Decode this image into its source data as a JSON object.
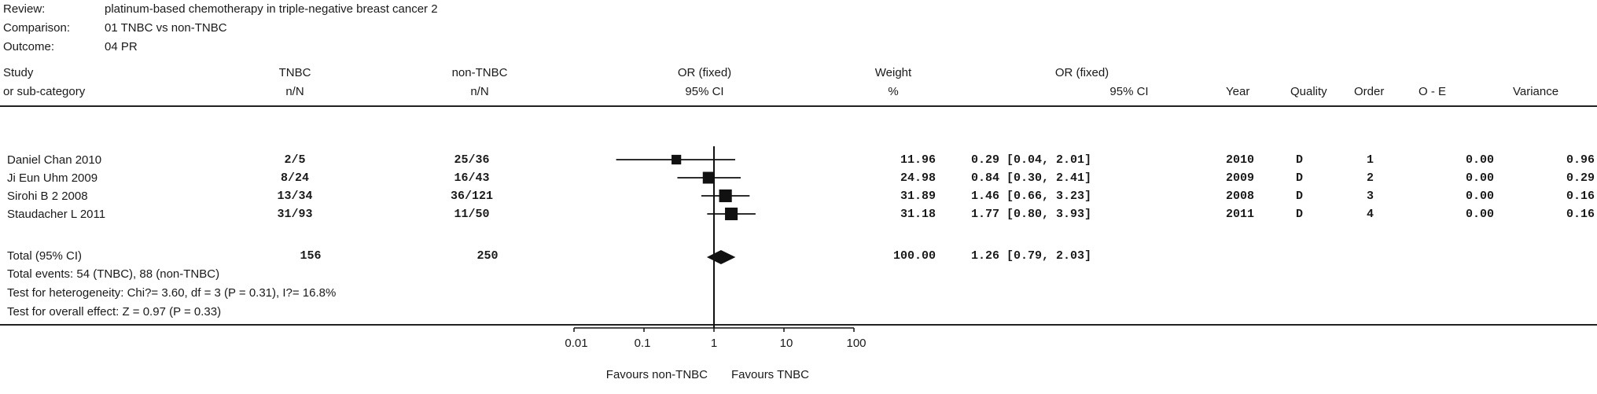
{
  "meta": {
    "review_label": "Review:",
    "review": "platinum-based chemotherapy in triple-negative breast cancer 2",
    "comparison_label": "Comparison:",
    "comparison": "01 TNBC vs non-TNBC",
    "outcome_label": "Outcome:",
    "outcome": "04 PR"
  },
  "headers": {
    "study": [
      "Study",
      "or sub-category"
    ],
    "tnbc": [
      "TNBC",
      "n/N"
    ],
    "nontnbc": [
      "non-TNBC",
      "n/N"
    ],
    "or_plot": [
      "OR (fixed)",
      "95% CI"
    ],
    "weight": [
      "Weight",
      "%"
    ],
    "or_text": [
      "OR (fixed)",
      "95% CI"
    ],
    "year": "Year",
    "quality": "Quality",
    "order": "Order",
    "oe": "O - E",
    "variance": "Variance"
  },
  "studies": [
    {
      "name": "Daniel Chan 2010",
      "tnbc": "2/5",
      "nontnbc": "25/36",
      "weight": "11.96",
      "or_text": "0.29 [0.04, 2.01]",
      "year": "2010",
      "quality": "D",
      "order": "1",
      "oe": "0.00",
      "variance": "0.96"
    },
    {
      "name": "Ji Eun Uhm 2009",
      "tnbc": "8/24",
      "nontnbc": "16/43",
      "weight": "24.98",
      "or_text": "0.84 [0.30, 2.41]",
      "year": "2009",
      "quality": "D",
      "order": "2",
      "oe": "0.00",
      "variance": "0.29"
    },
    {
      "name": "Sirohi B 2 2008",
      "tnbc": "13/34",
      "nontnbc": "36/121",
      "weight": "31.89",
      "or_text": "1.46 [0.66, 3.23]",
      "year": "2008",
      "quality": "D",
      "order": "3",
      "oe": "0.00",
      "variance": "0.16"
    },
    {
      "name": "Staudacher L 2011",
      "tnbc": "31/93",
      "nontnbc": "11/50",
      "weight": "31.18",
      "or_text": "1.77 [0.80, 3.93]",
      "year": "2011",
      "quality": "D",
      "order": "4",
      "oe": "0.00",
      "variance": "0.16"
    }
  ],
  "total": {
    "label": "Total (95% CI)",
    "tnbc": "156",
    "nontnbc": "250",
    "weight": "100.00",
    "or_text": "1.26 [0.79, 2.03]"
  },
  "footnotes": [
    "Total events: 54 (TNBC), 88 (non-TNBC)",
    "Test for heterogeneity: Chi?= 3.60, df = 3 (P = 0.31), I?= 16.8%",
    "Test for overall effect: Z = 0.97 (P = 0.33)"
  ],
  "axis": {
    "ticks": [
      "0.01",
      "0.1",
      "1",
      "10",
      "100"
    ],
    "favours_left": "Favours non-TNBC",
    "favours_right": "Favours TNBC"
  },
  "chart_data": {
    "type": "forest",
    "scale": "log",
    "xlim": [
      0.01,
      100
    ],
    "ticks": [
      0.01,
      0.1,
      1,
      10,
      100
    ],
    "reference_line": 1,
    "studies": [
      {
        "name": "Daniel Chan 2010",
        "or": 0.29,
        "lower": 0.04,
        "upper": 2.01,
        "weight": 11.96
      },
      {
        "name": "Ji Eun Uhm 2009",
        "or": 0.84,
        "lower": 0.3,
        "upper": 2.41,
        "weight": 24.98
      },
      {
        "name": "Sirohi B 2 2008",
        "or": 1.46,
        "lower": 0.66,
        "upper": 3.23,
        "weight": 31.89
      },
      {
        "name": "Staudacher L 2011",
        "or": 1.77,
        "lower": 0.8,
        "upper": 3.93,
        "weight": 31.18
      }
    ],
    "pooled": {
      "or": 1.26,
      "lower": 0.79,
      "upper": 2.03
    }
  }
}
